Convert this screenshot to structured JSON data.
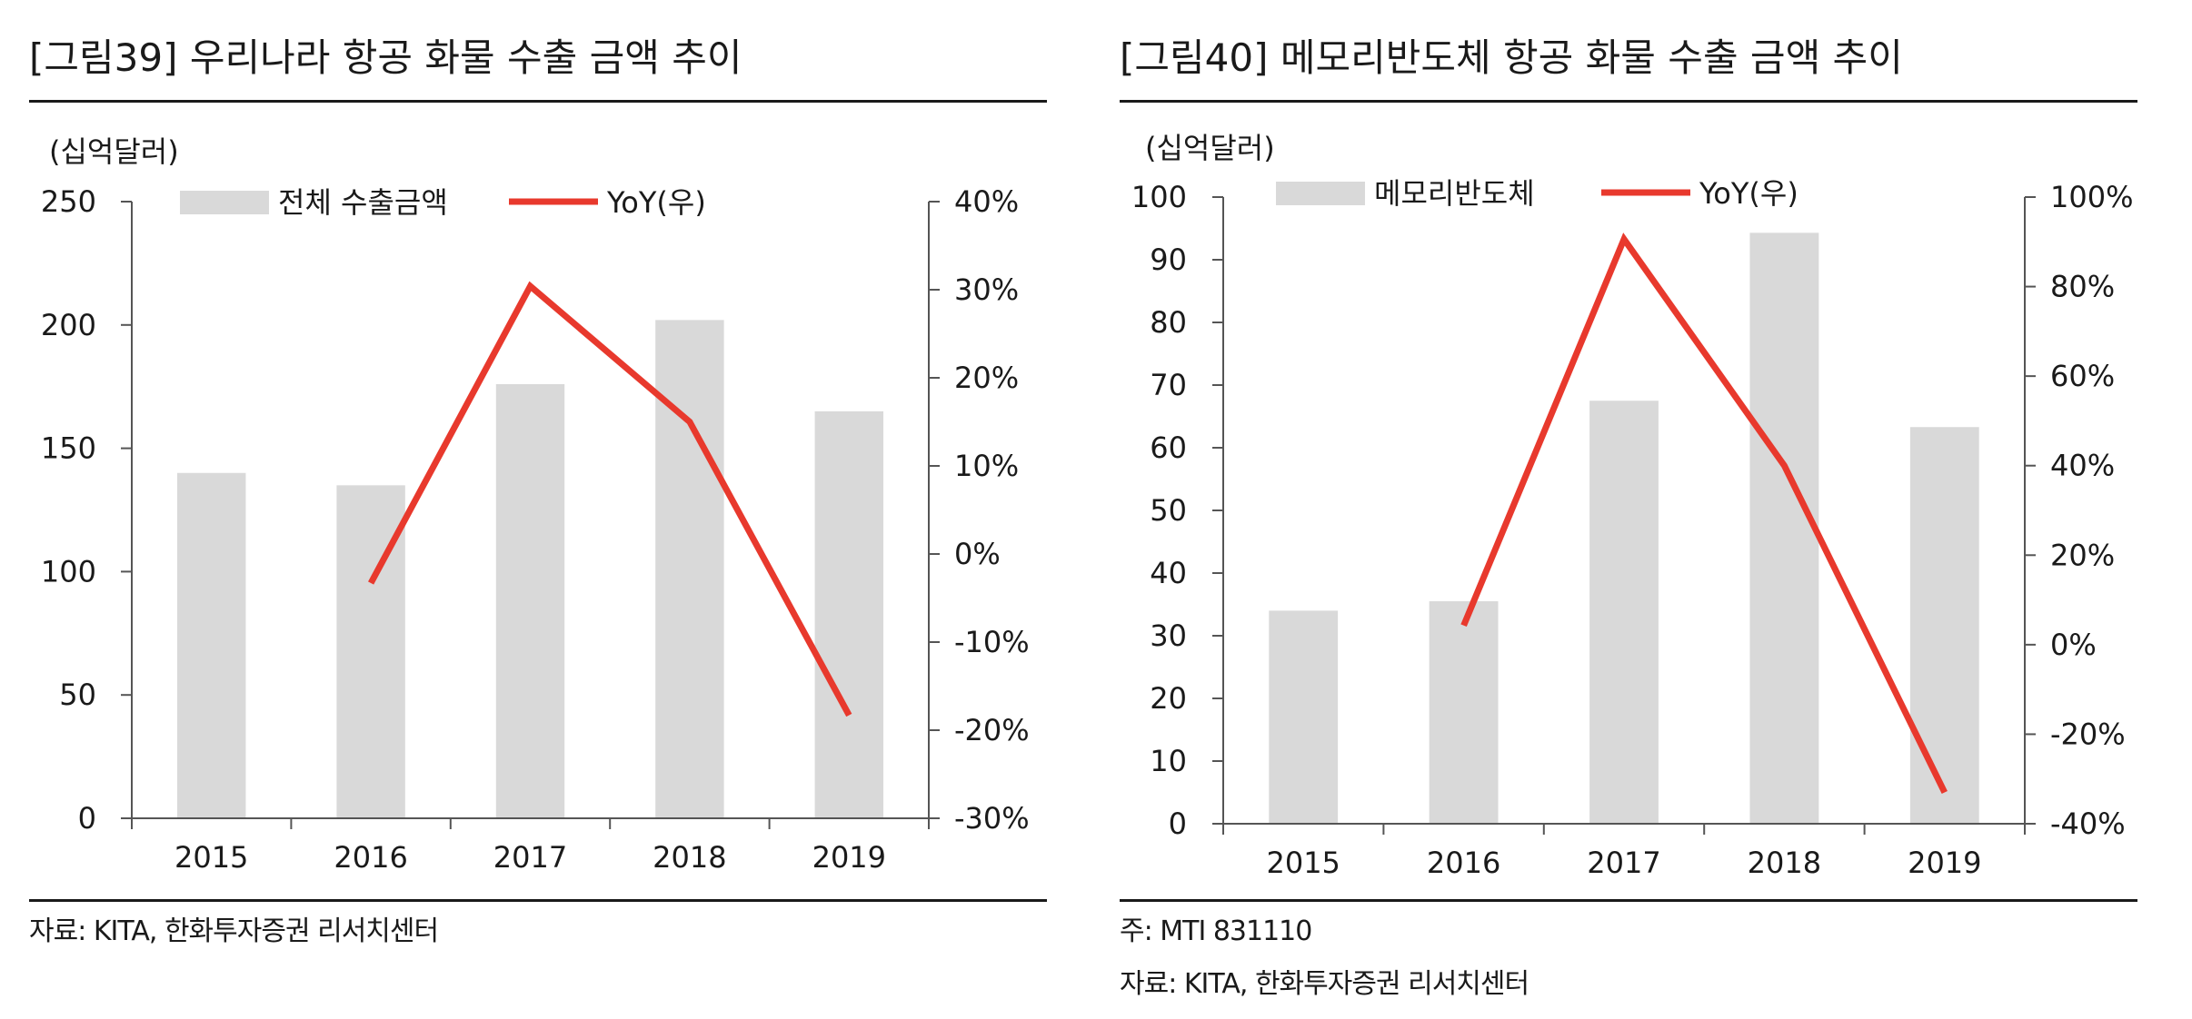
{
  "figures": [
    {
      "title": "[그림39]  우리나라 항공 화물 수출 금액 추이",
      "note": "",
      "source": "자료: KITA, 한화투자증권 리서치센터"
    },
    {
      "title": "[그림40]  메모리반도체 항공 화물 수출 금액 추이",
      "note": "주: MTI 831110",
      "source": "자료: KITA, 한화투자증권 리서치센터"
    }
  ],
  "colors": {
    "bar": "#d9d9d9",
    "line": "#e8392d",
    "axis": "#555555"
  },
  "chart_data": [
    {
      "type": "bar",
      "combo": "bar+line",
      "title": "[그림39]  우리나라 항공 화물 수출 금액 추이",
      "unit_label": "(십억달러)",
      "categories": [
        "2015",
        "2016",
        "2017",
        "2018",
        "2019"
      ],
      "series": [
        {
          "name": "전체 수출금액",
          "type": "bar",
          "axis": "left",
          "values": [
            140,
            135,
            176,
            202,
            165
          ]
        },
        {
          "name": "YoY(우)",
          "type": "line",
          "axis": "right",
          "values": [
            null,
            -3.3,
            30.4,
            15.0,
            -18.3
          ]
        }
      ],
      "ylim": [
        0,
        250
      ],
      "yticks": [
        0,
        50,
        100,
        150,
        200,
        250
      ],
      "ytick_labels": [
        "0",
        "50",
        "100",
        "150",
        "200",
        "250"
      ],
      "y2lim": [
        -30,
        40
      ],
      "y2ticks": [
        -30,
        -20,
        -10,
        0,
        10,
        20,
        30,
        40
      ],
      "y2tick_labels": [
        "-30%",
        "-20%",
        "-10%",
        "0%",
        "10%",
        "20%",
        "30%",
        "40%"
      ],
      "legend_position": "top",
      "grid": false
    },
    {
      "type": "bar",
      "combo": "bar+line",
      "title": "[그림40]  메모리반도체 항공 화물 수출 금액 추이",
      "unit_label": "(십억달러)",
      "categories": [
        "2015",
        "2016",
        "2017",
        "2018",
        "2019"
      ],
      "series": [
        {
          "name": "메모리반도체",
          "type": "bar",
          "axis": "left",
          "values": [
            34,
            35.5,
            67.5,
            94.3,
            63.3
          ]
        },
        {
          "name": "YoY(우)",
          "type": "line",
          "axis": "right",
          "values": [
            null,
            4.3,
            90.6,
            40.0,
            -33.0
          ]
        }
      ],
      "ylim": [
        0,
        100
      ],
      "yticks": [
        0,
        10,
        20,
        30,
        40,
        50,
        60,
        70,
        80,
        90,
        100
      ],
      "ytick_labels": [
        "0",
        "10",
        "20",
        "30",
        "40",
        "50",
        "60",
        "70",
        "80",
        "90",
        "100"
      ],
      "y2lim": [
        -40,
        100
      ],
      "y2ticks": [
        -40,
        -20,
        0,
        20,
        40,
        60,
        80,
        100
      ],
      "y2tick_labels": [
        "-40%",
        "-20%",
        "0%",
        "20%",
        "40%",
        "60%",
        "80%",
        "100%"
      ],
      "legend_position": "top",
      "grid": false
    }
  ]
}
